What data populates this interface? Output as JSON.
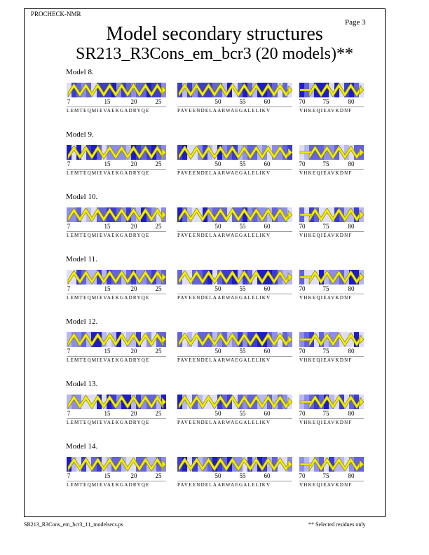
{
  "header": {
    "program": "PROCHECK-NMR",
    "page": "Page  3"
  },
  "title": "Model secondary structures",
  "subtitle": "SR213_R3Cons_em_bcr3 (20 models)**",
  "segments": [
    {
      "ticks": [
        "7",
        "15",
        "20",
        "25"
      ],
      "sequence": "LEMTEQMIEVAEKGADRYQE"
    },
    {
      "ticks": [
        "50",
        "55",
        "60"
      ],
      "sequence": "PAVEENDELAARWAEGALELIKV"
    },
    {
      "ticks": [
        "70",
        "75",
        "80"
      ],
      "sequence": "VHKEQIEAVKDNF"
    }
  ],
  "models": [
    {
      "label": "Model  8."
    },
    {
      "label": "Model  9."
    },
    {
      "label": "Model 10."
    },
    {
      "label": "Model 11."
    },
    {
      "label": "Model 12."
    },
    {
      "label": "Model 13."
    },
    {
      "label": "Model 14."
    }
  ],
  "footer": {
    "filename": "SR213_R3Cons_em_bcr3_11_modelsecs.ps",
    "note": "** Selected residues only"
  },
  "colors": {
    "helix_fill": "#f2ee00",
    "helix_stroke": "#8a8000",
    "shades": [
      "#1c1ccc",
      "#3b3bd9",
      "#6262e2",
      "#8c8cec",
      "#b7b7f4",
      "#dedefa"
    ],
    "rule": "#999999"
  }
}
